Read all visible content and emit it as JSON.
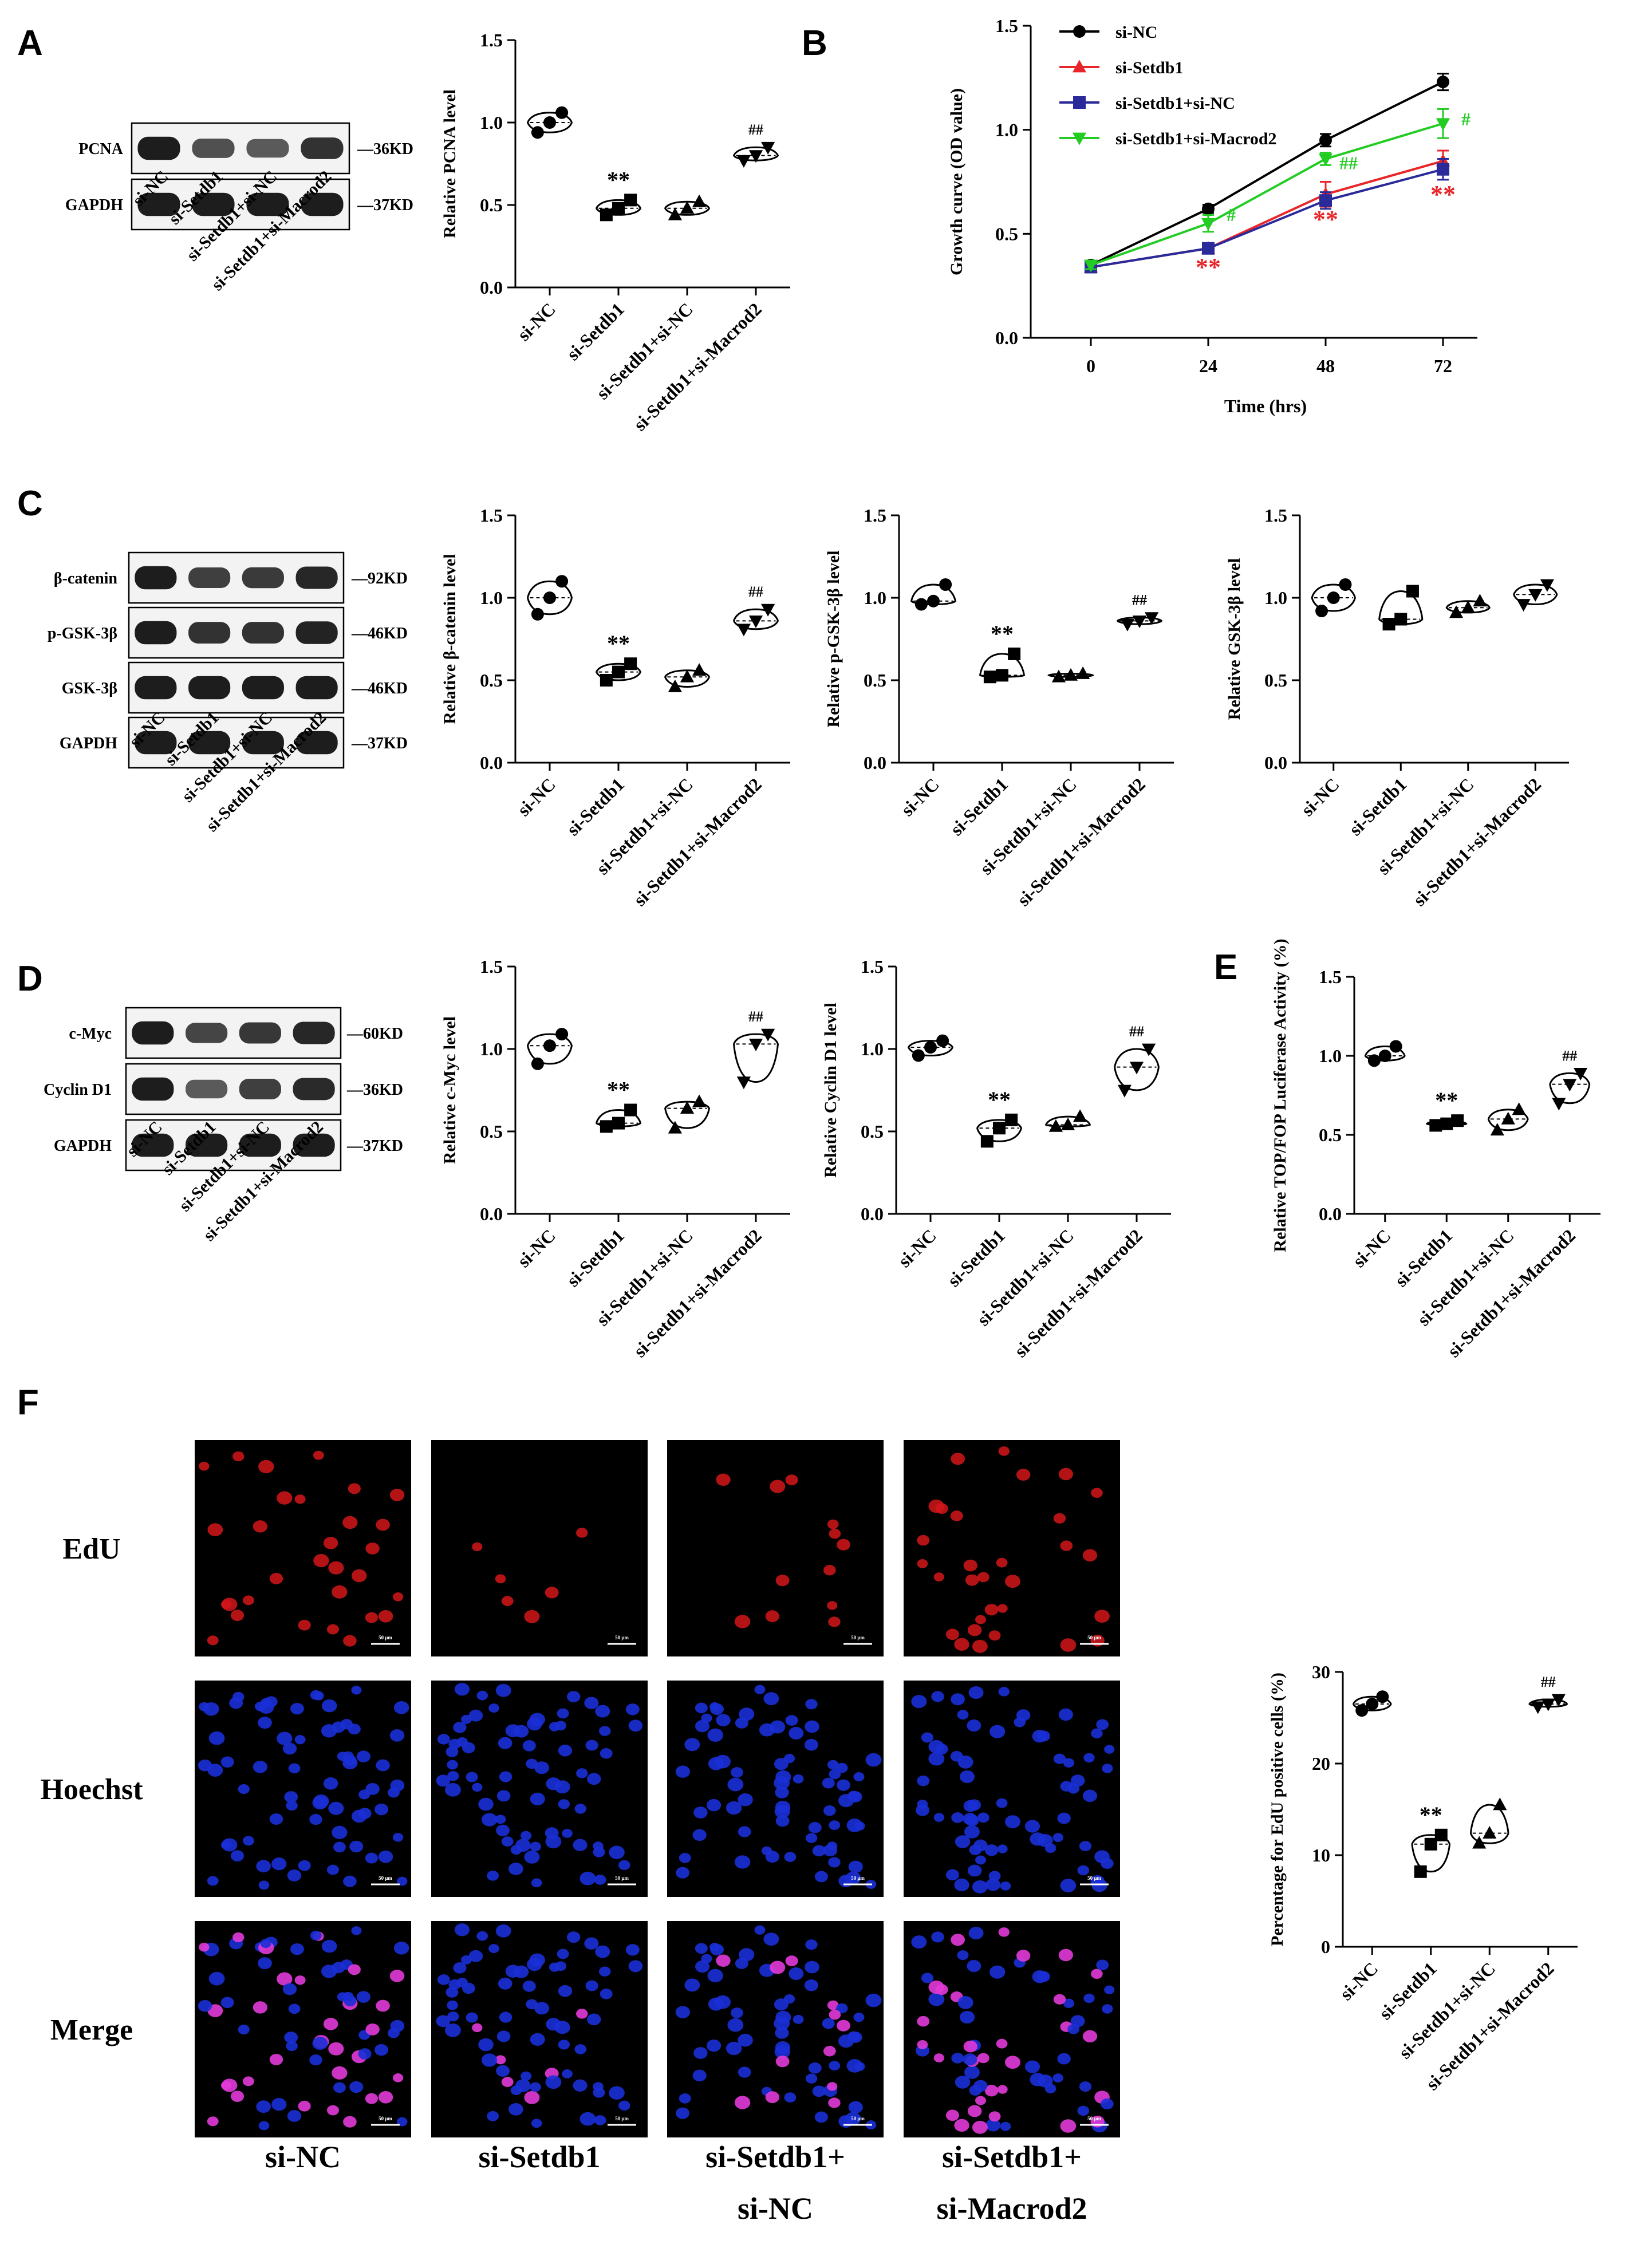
{
  "figure": {
    "panel_labels": {
      "A": "A",
      "B": "B",
      "C": "C",
      "D": "D",
      "E": "E",
      "F": "F"
    }
  },
  "groups": [
    "si-NC",
    "si-Setdb1",
    "si-Setdb1+si-NC",
    "si-Setdb1+si-Macrod2"
  ],
  "blots": {
    "A": {
      "rows": [
        {
          "label": "PCNA",
          "size": "—36KD",
          "intensity": [
            1.0,
            0.62,
            0.55,
            0.85
          ]
        },
        {
          "label": "GAPDH",
          "size": "—37KD",
          "intensity": [
            1.0,
            1.0,
            1.0,
            1.0
          ]
        }
      ]
    },
    "C": {
      "rows": [
        {
          "label": "β-catenin",
          "size": "—92KD",
          "intensity": [
            1.0,
            0.75,
            0.78,
            0.92
          ]
        },
        {
          "label": "p-GSK-3β",
          "size": "—46KD",
          "intensity": [
            1.0,
            0.85,
            0.85,
            0.95
          ]
        },
        {
          "label": "GSK-3β",
          "size": "—46KD",
          "intensity": [
            1.0,
            1.0,
            1.0,
            1.0
          ]
        },
        {
          "label": "GAPDH",
          "size": "—37KD",
          "intensity": [
            1.0,
            1.0,
            1.0,
            1.0
          ]
        }
      ]
    },
    "D": {
      "rows": [
        {
          "label": "c-Myc",
          "size": "—60KD",
          "intensity": [
            1.0,
            0.7,
            0.8,
            0.92
          ]
        },
        {
          "label": "Cyclin D1",
          "size": "—36KD",
          "intensity": [
            1.0,
            0.55,
            0.75,
            0.9
          ]
        },
        {
          "label": "GAPDH",
          "size": "—37KD",
          "intensity": [
            1.0,
            1.0,
            1.0,
            1.0
          ]
        }
      ]
    }
  },
  "chart_data": [
    {
      "id": "A-pcna",
      "type": "violin",
      "ylabel": "Relative PCNA level",
      "ylim": [
        0,
        1.5
      ],
      "yticks": [
        "0.0",
        "0.5",
        "1.0",
        "1.5"
      ],
      "categories": [
        "si-NC",
        "si-Setdb1",
        "si-Setdb1+si-NC",
        "si-Setdb1+si-Macrod2"
      ],
      "values": [
        [
          0.94,
          1.0,
          1.06
        ],
        [
          0.44,
          0.48,
          0.53
        ],
        [
          0.44,
          0.48,
          0.52
        ],
        [
          0.77,
          0.8,
          0.85
        ]
      ],
      "annotations": [
        "",
        "**",
        "",
        "##"
      ]
    },
    {
      "id": "B-growth",
      "type": "line",
      "xlabel": "Time (hrs)",
      "ylabel": "Growth curve (OD value)",
      "x": [
        0,
        24,
        48,
        72
      ],
      "xticks": [
        "0",
        "24",
        "48",
        "72"
      ],
      "ylim": [
        0,
        1.5
      ],
      "yticks": [
        "0.0",
        "0.5",
        "1.0",
        "1.5"
      ],
      "legend_position": "top-left",
      "series": [
        {
          "name": "si-NC",
          "color": "#000000",
          "marker": "circle",
          "values": [
            0.35,
            0.62,
            0.95,
            1.23
          ],
          "err": [
            0.02,
            0.02,
            0.03,
            0.04
          ]
        },
        {
          "name": "si-Setdb1",
          "color": "#e8262a",
          "marker": "triangle-up",
          "values": [
            0.34,
            0.43,
            0.69,
            0.85
          ],
          "err": [
            0.02,
            0.02,
            0.06,
            0.05
          ]
        },
        {
          "name": "si-Setdb1+si-NC",
          "color": "#2a2a9a",
          "marker": "square",
          "values": [
            0.34,
            0.43,
            0.66,
            0.81
          ],
          "err": [
            0.02,
            0.02,
            0.04,
            0.05
          ]
        },
        {
          "name": "si-Setdb1+si-Macrod2",
          "color": "#22cc22",
          "marker": "triangle-down",
          "values": [
            0.35,
            0.55,
            0.86,
            1.03
          ],
          "err": [
            0.02,
            0.04,
            0.03,
            0.07
          ]
        }
      ],
      "annotations": [
        {
          "text": "#",
          "color": "#22cc22",
          "x": 24,
          "y": 0.55
        },
        {
          "text": "##",
          "color": "#22cc22",
          "x": 48,
          "y": 0.8
        },
        {
          "text": "#",
          "color": "#22cc22",
          "x": 72,
          "y": 1.01
        },
        {
          "text": "**",
          "color": "#e8262a",
          "x": 24,
          "y": 0.3
        },
        {
          "text": "**",
          "color": "#e8262a",
          "x": 48,
          "y": 0.53
        },
        {
          "text": "**",
          "color": "#e8262a",
          "x": 72,
          "y": 0.65
        }
      ]
    },
    {
      "id": "C-bcat",
      "type": "violin",
      "ylabel": "Relative β-catenin level",
      "ylim": [
        0,
        1.5
      ],
      "yticks": [
        "0.0",
        "0.5",
        "1.0",
        "1.5"
      ],
      "categories": [
        "si-NC",
        "si-Setdb1",
        "si-Setdb1+si-NC",
        "si-Setdb1+si-Macrod2"
      ],
      "values": [
        [
          0.9,
          1.0,
          1.1
        ],
        [
          0.5,
          0.55,
          0.6
        ],
        [
          0.46,
          0.52,
          0.56
        ],
        [
          0.81,
          0.86,
          0.93
        ]
      ],
      "annotations": [
        "",
        "**",
        "",
        "##"
      ]
    },
    {
      "id": "C-pgsk",
      "type": "violin",
      "ylabel": "Relative p-GSK-3β level",
      "ylim": [
        0,
        1.5
      ],
      "yticks": [
        "0.0",
        "0.5",
        "1.0",
        "1.5"
      ],
      "categories": [
        "si-NC",
        "si-Setdb1",
        "si-Setdb1+si-NC",
        "si-Setdb1+si-Macrod2"
      ],
      "values": [
        [
          0.96,
          0.98,
          1.08
        ],
        [
          0.52,
          0.53,
          0.66
        ],
        [
          0.52,
          0.53,
          0.54
        ],
        [
          0.84,
          0.86,
          0.88
        ]
      ],
      "annotations": [
        "",
        "**",
        "",
        "##"
      ]
    },
    {
      "id": "C-gsk",
      "type": "violin",
      "ylabel": "Relative GSK-3β level",
      "ylim": [
        0,
        1.5
      ],
      "yticks": [
        "0.0",
        "0.5",
        "1.0",
        "1.5"
      ],
      "categories": [
        "si-NC",
        "si-Setdb1",
        "si-Setdb1+si-NC",
        "si-Setdb1+si-Macrod2"
      ],
      "values": [
        [
          0.92,
          1.0,
          1.08
        ],
        [
          0.84,
          0.87,
          1.04
        ],
        [
          0.91,
          0.94,
          0.98
        ],
        [
          0.96,
          1.02,
          1.08
        ]
      ],
      "annotations": [
        "",
        "",
        "",
        ""
      ]
    },
    {
      "id": "D-myc",
      "type": "violin",
      "ylabel": "Relative c-Myc level",
      "ylim": [
        0,
        1.5
      ],
      "yticks": [
        "0.0",
        "0.5",
        "1.0",
        "1.5"
      ],
      "categories": [
        "si-NC",
        "si-Setdb1",
        "si-Setdb1+si-NC",
        "si-Setdb1+si-Macrod2"
      ],
      "values": [
        [
          0.91,
          1.02,
          1.09
        ],
        [
          0.53,
          0.55,
          0.63
        ],
        [
          0.52,
          0.64,
          0.68
        ],
        [
          0.8,
          1.03,
          1.09
        ]
      ],
      "annotations": [
        "",
        "**",
        "",
        "##"
      ]
    },
    {
      "id": "D-cyclin",
      "type": "violin",
      "ylabel": "Relative Cyclin D1 level",
      "ylim": [
        0,
        1.5
      ],
      "yticks": [
        "0.0",
        "0.5",
        "1.0",
        "1.5"
      ],
      "categories": [
        "si-NC",
        "si-Setdb1",
        "si-Setdb1+si-NC",
        "si-Setdb1+si-Macrod2"
      ],
      "values": [
        [
          0.96,
          1.01,
          1.05
        ],
        [
          0.44,
          0.52,
          0.57
        ],
        [
          0.53,
          0.54,
          0.59
        ],
        [
          0.75,
          0.89,
          1.0
        ]
      ],
      "annotations": [
        "",
        "**",
        "",
        "##"
      ]
    },
    {
      "id": "E-topfop",
      "type": "violin",
      "ylabel": "Relative TOP/FOP Luciferase Activity (%)",
      "ylim": [
        0,
        1.5
      ],
      "yticks": [
        "0.0",
        "0.5",
        "1.0",
        "1.5"
      ],
      "categories": [
        "si-NC",
        "si-Setdb1",
        "si-Setdb1+si-NC",
        "si-Setdb1+si-Macrod2"
      ],
      "values": [
        [
          0.97,
          1.0,
          1.06
        ],
        [
          0.56,
          0.57,
          0.59
        ],
        [
          0.53,
          0.6,
          0.66
        ],
        [
          0.7,
          0.82,
          0.89
        ]
      ],
      "annotations": [
        "",
        "**",
        "",
        "##"
      ]
    },
    {
      "id": "F-edu",
      "type": "violin",
      "ylabel": "Percentage for EdU positive cells (%)",
      "ylim": [
        0,
        30
      ],
      "yticks": [
        "0",
        "10",
        "20",
        "30"
      ],
      "categories": [
        "si-NC",
        "si-Setdb1",
        "si-Setdb1+si-NC",
        "si-Setdb1+si-Macrod2"
      ],
      "values": [
        [
          25.8,
          26.5,
          27.3
        ],
        [
          8.2,
          11.2,
          12.2
        ],
        [
          11.3,
          12.4,
          15.5
        ],
        [
          26.2,
          26.5,
          27.0
        ]
      ],
      "annotations": [
        "",
        "**",
        "",
        "##"
      ]
    }
  ],
  "micrographs": {
    "rows": [
      {
        "label": "EdU",
        "stain": "edu"
      },
      {
        "label": "Hoechst",
        "stain": "hoechst"
      },
      {
        "label": "Merge",
        "stain": "merge"
      }
    ],
    "columns": [
      [
        "si-NC"
      ],
      [
        "si-Setdb1"
      ],
      [
        "si-Setdb1+",
        "si-NC"
      ],
      [
        "si-Setdb1+",
        "si-Macrod2"
      ]
    ],
    "positive_fraction": [
      0.27,
      0.11,
      0.13,
      0.27
    ],
    "scale_bar": "50 μm"
  }
}
